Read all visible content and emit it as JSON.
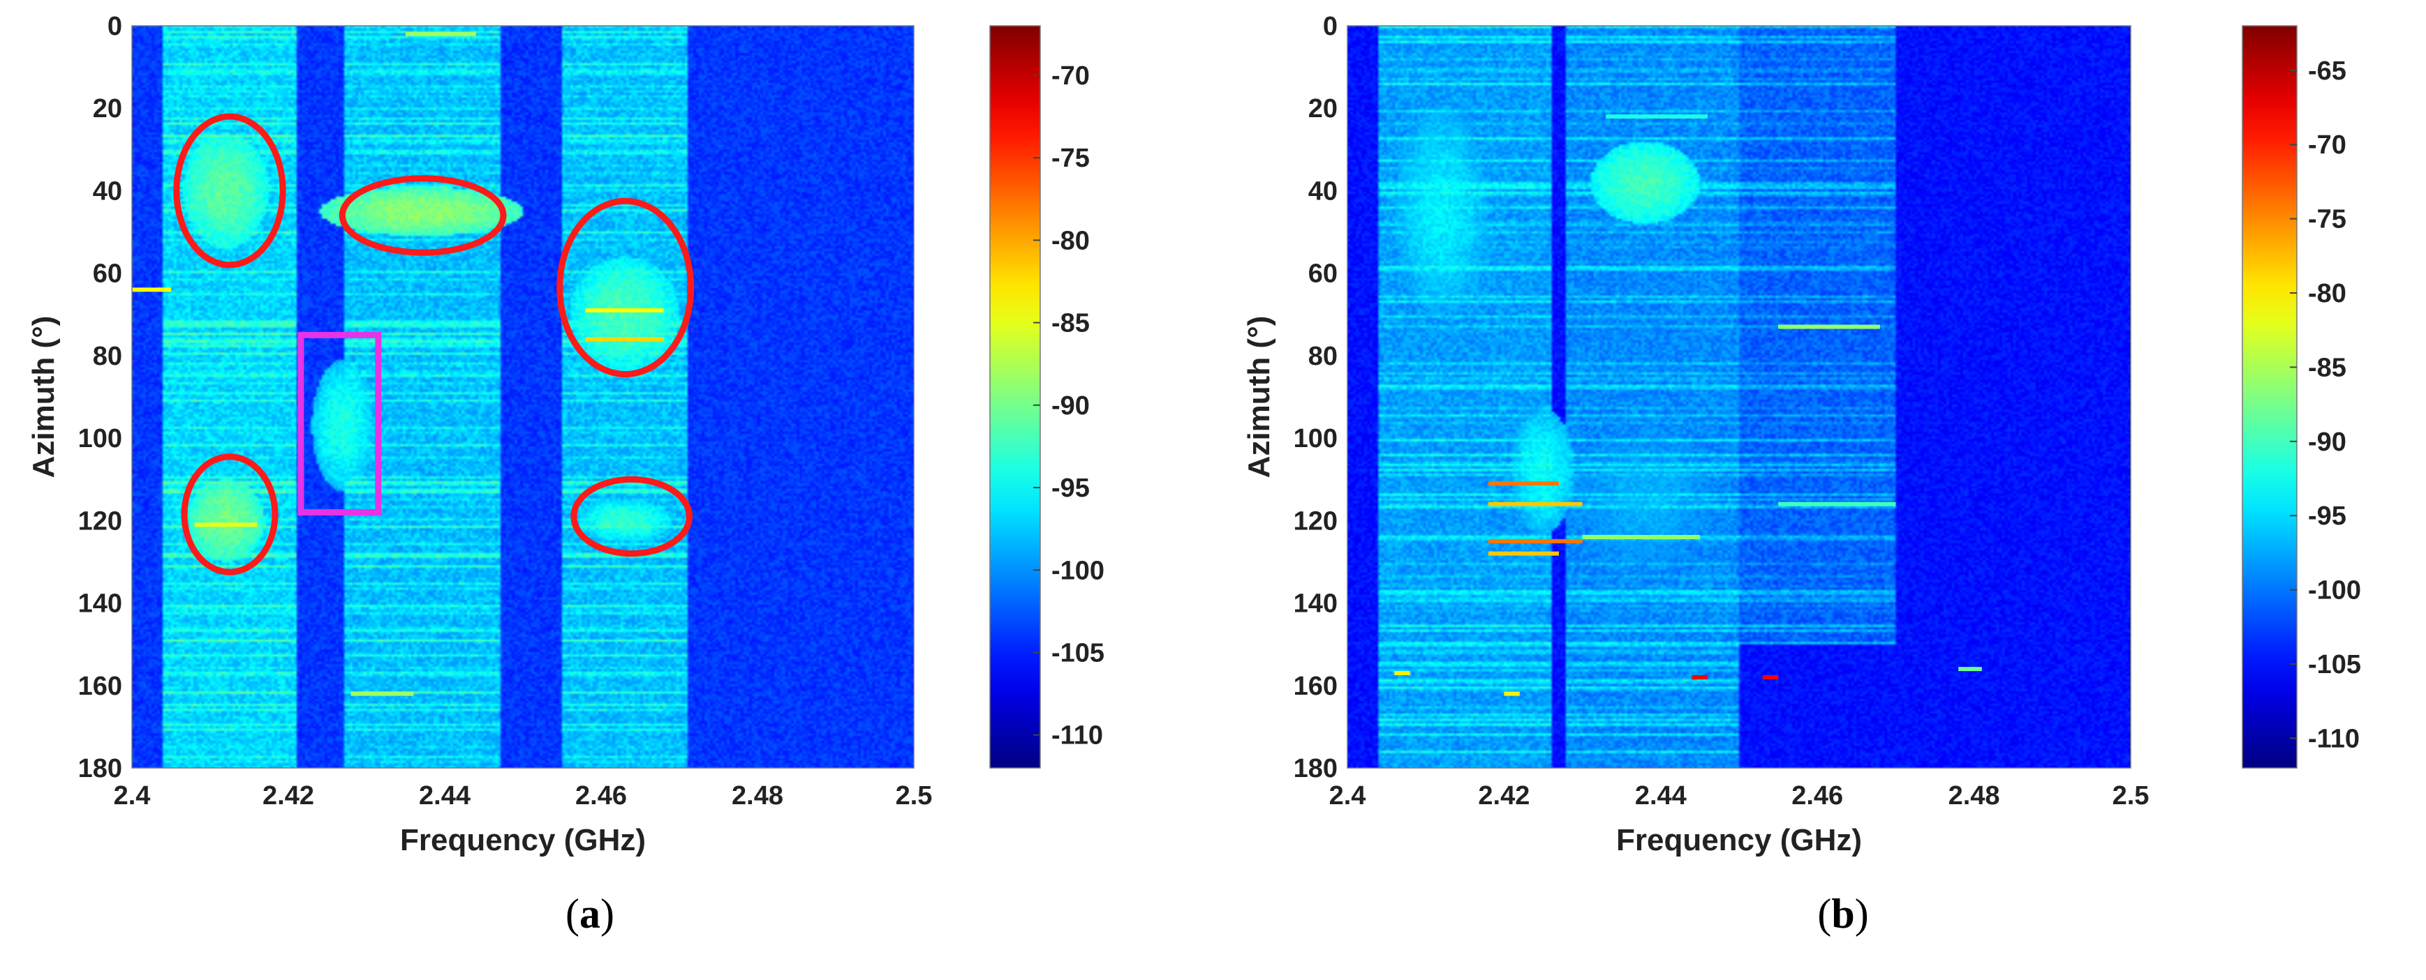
{
  "chart_data": [
    {
      "type": "heatmap",
      "panel_label": "a",
      "xlabel": "Frequency (GHz)",
      "ylabel": "Azimuth (°)",
      "xlim": [
        2.4,
        2.5
      ],
      "ylim": [
        0,
        180
      ],
      "x_ticks": [
        "2.4",
        "2.42",
        "2.44",
        "2.46",
        "2.48",
        "2.5"
      ],
      "y_ticks": [
        "0",
        "20",
        "40",
        "60",
        "80",
        "100",
        "120",
        "140",
        "160",
        "180"
      ],
      "colorbar": {
        "range": [
          -112,
          -67
        ],
        "ticks": [
          "-70",
          "-75",
          "-80",
          "-85",
          "-90",
          "-95",
          "-100",
          "-105",
          "-110"
        ]
      },
      "background_level": -104,
      "bands": [
        {
          "x0": 2.404,
          "x1": 2.421,
          "y0": 0,
          "y1": 180,
          "level": -97
        },
        {
          "x0": 2.427,
          "x1": 2.447,
          "y0": 0,
          "y1": 180,
          "level": -98
        },
        {
          "x0": 2.455,
          "x1": 2.471,
          "y0": 0,
          "y1": 180,
          "level": -98
        }
      ],
      "blobs": [
        {
          "x": 2.412,
          "y": 40,
          "rx": 0.0055,
          "ry": 14,
          "level": -91
        },
        {
          "x": 2.437,
          "y": 45,
          "rx": 0.013,
          "ry": 6,
          "level": -89
        },
        {
          "x": 2.463,
          "y": 70,
          "rx": 0.007,
          "ry": 14,
          "level": -92
        },
        {
          "x": 2.412,
          "y": 120,
          "rx": 0.005,
          "ry": 10,
          "level": -90
        },
        {
          "x": 2.463,
          "y": 120,
          "rx": 0.006,
          "ry": 5,
          "level": -93
        },
        {
          "x": 2.427,
          "y": 97,
          "rx": 0.004,
          "ry": 16,
          "level": -94
        }
      ],
      "hot_lines": [
        {
          "x0": 2.458,
          "x1": 2.468,
          "y": 69,
          "level": -84
        },
        {
          "x0": 2.458,
          "x1": 2.468,
          "y": 76,
          "level": -82
        },
        {
          "x0": 2.408,
          "x1": 2.416,
          "y": 121,
          "level": -85
        },
        {
          "x0": 2.4,
          "x1": 2.405,
          "y": 64,
          "level": -84
        },
        {
          "x0": 2.435,
          "x1": 2.444,
          "y": 2,
          "level": -88
        },
        {
          "x0": 2.428,
          "x1": 2.436,
          "y": 162,
          "level": -88
        }
      ],
      "annotations": [
        {
          "shape": "ellipse",
          "color": "#ff1a1a",
          "cx": 2.4125,
          "cy": 40,
          "rx": 0.0068,
          "ry": 18
        },
        {
          "shape": "ellipse",
          "color": "#ff1a1a",
          "cx": 2.4372,
          "cy": 46,
          "rx": 0.0103,
          "ry": 9
        },
        {
          "shape": "ellipse",
          "color": "#ff1a1a",
          "cx": 2.4631,
          "cy": 63.5,
          "rx": 0.0084,
          "ry": 21
        },
        {
          "shape": "ellipse",
          "color": "#ff1a1a",
          "cx": 2.4125,
          "cy": 118.5,
          "rx": 0.0058,
          "ry": 14
        },
        {
          "shape": "ellipse",
          "color": "#ff1a1a",
          "cx": 2.4639,
          "cy": 119,
          "rx": 0.0074,
          "ry": 9
        },
        {
          "shape": "rect",
          "color": "#e633e6",
          "x0": 2.4216,
          "x1": 2.4315,
          "y0": 75,
          "y1": 118
        }
      ]
    },
    {
      "type": "heatmap",
      "panel_label": "b",
      "xlabel": "Frequency (GHz)",
      "ylabel": "Azimuth (°)",
      "xlim": [
        2.4,
        2.5
      ],
      "ylim": [
        0,
        180
      ],
      "x_ticks": [
        "2.4",
        "2.42",
        "2.44",
        "2.46",
        "2.48",
        "2.5"
      ],
      "y_ticks": [
        "0",
        "20",
        "40",
        "60",
        "80",
        "100",
        "120",
        "140",
        "160",
        "180"
      ],
      "colorbar": {
        "range": [
          -112,
          -62
        ],
        "ticks": [
          "-65",
          "-70",
          "-75",
          "-80",
          "-85",
          "-90",
          "-95",
          "-100",
          "-105",
          "-110"
        ]
      },
      "background_level": -105,
      "bands": [
        {
          "x0": 2.404,
          "x1": 2.426,
          "y0": 0,
          "y1": 180,
          "level": -98
        },
        {
          "x0": 2.428,
          "x1": 2.45,
          "y0": 0,
          "y1": 180,
          "level": -99
        },
        {
          "x0": 2.45,
          "x1": 2.47,
          "y0": 0,
          "y1": 150,
          "level": -101
        }
      ],
      "blobs": [
        {
          "x": 2.412,
          "y": 45,
          "rx": 0.006,
          "ry": 25,
          "level": -94
        },
        {
          "x": 2.438,
          "y": 38,
          "rx": 0.007,
          "ry": 10,
          "level": -90
        },
        {
          "x": 2.425,
          "y": 108,
          "rx": 0.004,
          "ry": 15,
          "level": -93
        },
        {
          "x": 2.438,
          "y": 115,
          "rx": 0.01,
          "ry": 20,
          "level": -97
        }
      ],
      "hot_lines": [
        {
          "x0": 2.418,
          "x1": 2.427,
          "y": 111,
          "level": -74
        },
        {
          "x0": 2.418,
          "x1": 2.43,
          "y": 116,
          "level": -78
        },
        {
          "x0": 2.418,
          "x1": 2.43,
          "y": 125,
          "level": -74
        },
        {
          "x0": 2.418,
          "x1": 2.427,
          "y": 128,
          "level": -78
        },
        {
          "x0": 2.43,
          "x1": 2.445,
          "y": 124,
          "level": -86
        },
        {
          "x0": 2.455,
          "x1": 2.468,
          "y": 73,
          "level": -86
        },
        {
          "x0": 2.433,
          "x1": 2.446,
          "y": 22,
          "level": -92
        },
        {
          "x0": 2.444,
          "x1": 2.446,
          "y": 158,
          "level": -68
        },
        {
          "x0": 2.453,
          "x1": 2.455,
          "y": 158,
          "level": -68
        },
        {
          "x0": 2.42,
          "x1": 2.422,
          "y": 162,
          "level": -80
        },
        {
          "x0": 2.455,
          "x1": 2.47,
          "y": 116,
          "level": -90
        },
        {
          "x0": 2.478,
          "x1": 2.481,
          "y": 156,
          "level": -88
        },
        {
          "x0": 2.406,
          "x1": 2.408,
          "y": 157,
          "level": -80
        }
      ],
      "annotations": []
    }
  ]
}
